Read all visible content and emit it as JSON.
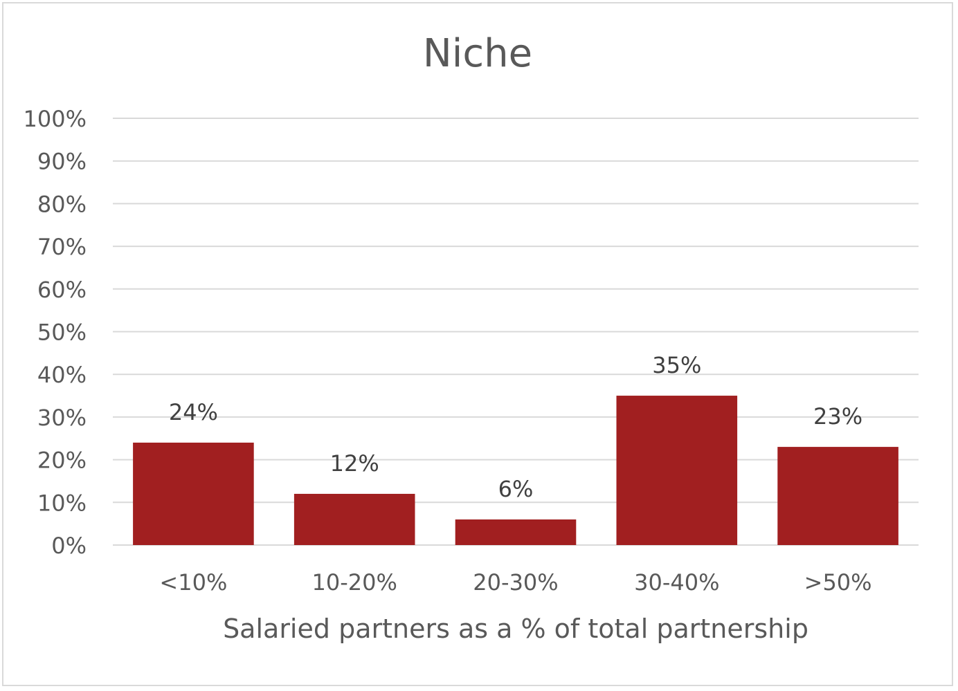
{
  "chart_data": {
    "type": "bar",
    "title": "Niche",
    "xlabel": "Salaried partners as a % of total partnership",
    "ylabel": "",
    "categories": [
      "<10%",
      "10-20%",
      "20-30%",
      "30-40%",
      ">50%"
    ],
    "values": [
      24,
      12,
      6,
      35,
      23
    ],
    "data_labels": [
      "24%",
      "12%",
      "6%",
      "35%",
      "23%"
    ],
    "ylim": [
      0,
      100
    ],
    "yticks": [
      0,
      10,
      20,
      30,
      40,
      50,
      60,
      70,
      80,
      90,
      100
    ],
    "ytick_labels": [
      "0%",
      "10%",
      "20%",
      "30%",
      "40%",
      "50%",
      "60%",
      "70%",
      "80%",
      "90%",
      "100%"
    ],
    "grid": true,
    "legend": "none",
    "colors": {
      "bar": "#a11f20",
      "grid": "#d9d9d9",
      "text": "#595959",
      "data_label": "#404040"
    }
  }
}
